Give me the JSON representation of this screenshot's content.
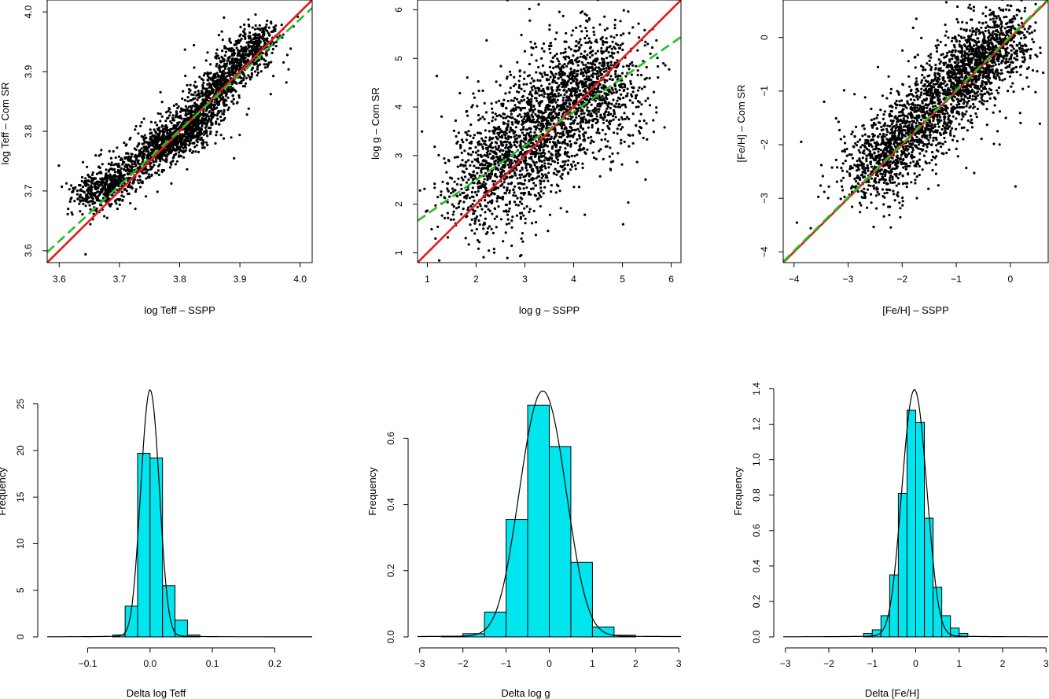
{
  "chart_data": [
    {
      "type": "scatter",
      "xlabel": "log Teff – SSPP",
      "ylabel": "log Teff – Com SR",
      "xlim": [
        3.58,
        4.02
      ],
      "ylim": [
        3.58,
        4.02
      ],
      "xticks": [
        "3.6",
        "3.7",
        "3.8",
        "3.9",
        "4.0"
      ],
      "yticks": [
        "3.6",
        "3.7",
        "3.8",
        "3.9",
        "4.0"
      ],
      "lines": [
        {
          "name": "identity",
          "color": "#e31a1c",
          "style": "solid",
          "slope": 1.0,
          "intercept": 0.0
        },
        {
          "name": "fit",
          "color": "#22c022",
          "style": "dashed",
          "slope": 0.93,
          "intercept": 0.268
        }
      ],
      "cloud": [
        [
          3.64,
          3.69
        ],
        [
          3.7,
          3.72
        ],
        [
          3.76,
          3.77
        ],
        [
          3.8,
          3.79
        ],
        [
          3.83,
          3.82
        ],
        [
          3.86,
          3.87
        ],
        [
          3.9,
          3.92
        ],
        [
          3.95,
          3.96
        ]
      ]
    },
    {
      "type": "scatter",
      "xlabel": "log g – SSPP",
      "ylabel": "log g – Com SR",
      "xlim": [
        0.8,
        6.2
      ],
      "ylim": [
        0.8,
        6.2
      ],
      "xticks": [
        "1",
        "2",
        "3",
        "4",
        "5",
        "6"
      ],
      "yticks": [
        "1",
        "2",
        "3",
        "4",
        "5",
        "6"
      ],
      "lines": [
        {
          "name": "identity",
          "color": "#e31a1c",
          "style": "solid",
          "slope": 1.0,
          "intercept": 0.0
        },
        {
          "name": "fit",
          "color": "#22c022",
          "style": "dashed",
          "slope": 0.7,
          "intercept": 1.1
        }
      ],
      "cloud": [
        [
          1.8,
          2.2
        ],
        [
          2.5,
          2.7
        ],
        [
          3.0,
          3.3
        ],
        [
          3.5,
          3.7
        ],
        [
          4.0,
          4.3
        ],
        [
          4.5,
          4.5
        ],
        [
          4.9,
          4.6
        ]
      ]
    },
    {
      "type": "scatter",
      "xlabel": "[Fe/H] – SSPP",
      "ylabel": "[Fe/H] – Com SR",
      "xlim": [
        -4.2,
        0.7
      ],
      "ylim": [
        -4.2,
        0.7
      ],
      "xticks": [
        "−4",
        "−3",
        "−2",
        "−1",
        "0"
      ],
      "yticks": [
        "−4",
        "−3",
        "−2",
        "−1",
        "0"
      ],
      "lines": [
        {
          "name": "identity",
          "color": "#e31a1c",
          "style": "solid",
          "slope": 1.0,
          "intercept": 0.0
        },
        {
          "name": "fit",
          "color": "#22c022",
          "style": "dashed",
          "slope": 1.0,
          "intercept": 0.02
        }
      ],
      "cloud": [
        [
          -2.7,
          -2.7
        ],
        [
          -2.2,
          -2.1
        ],
        [
          -1.7,
          -1.6
        ],
        [
          -1.2,
          -1.1
        ],
        [
          -0.8,
          -0.6
        ],
        [
          -0.4,
          -0.3
        ],
        [
          0.0,
          0.1
        ]
      ]
    },
    {
      "type": "bar",
      "xlabel": "Delta log Teff",
      "ylabel": "Frequency",
      "xlim": [
        -0.165,
        0.26
      ],
      "ylim": [
        0,
        27
      ],
      "xticks": [
        "−0.1",
        "0.0",
        "0.1",
        "0.2"
      ],
      "xtick_values": [
        -0.1,
        0.0,
        0.1,
        0.2
      ],
      "yticks": [
        "0",
        "5",
        "10",
        "15",
        "20",
        "25"
      ],
      "ytick_values": [
        0,
        5,
        10,
        15,
        20,
        25
      ],
      "bin_edges": [
        -0.06,
        -0.04,
        -0.02,
        0.0,
        0.02,
        0.04,
        0.06,
        0.08
      ],
      "values": [
        0.2,
        3.3,
        19.7,
        19.2,
        5.5,
        1.8,
        0.2
      ],
      "curve": {
        "mean": 0.0,
        "sd": 0.0151,
        "peak": 26.4
      },
      "bar_color": "#00e5ee"
    },
    {
      "type": "bar",
      "xlabel": "Delta log g",
      "ylabel": "Frequency",
      "xlim": [
        -3.05,
        3.05
      ],
      "ylim": [
        0,
        0.76
      ],
      "xticks": [
        "−3",
        "−2",
        "−1",
        "0",
        "1",
        "2",
        "3"
      ],
      "xtick_values": [
        -3,
        -2,
        -1,
        0,
        1,
        2,
        3
      ],
      "yticks": [
        "0.0",
        "0.2",
        "0.4",
        "0.6"
      ],
      "ytick_values": [
        0.0,
        0.2,
        0.4,
        0.6
      ],
      "bin_edges": [
        -2.5,
        -2.0,
        -1.5,
        -1.0,
        -0.5,
        0.0,
        0.5,
        1.0,
        1.5,
        2.0
      ],
      "values": [
        0.002,
        0.01,
        0.075,
        0.355,
        0.7,
        0.575,
        0.225,
        0.03,
        0.005
      ],
      "curve": {
        "mean": -0.15,
        "sd": 0.54,
        "peak": 0.74
      },
      "bar_color": "#00e5ee"
    },
    {
      "type": "bar",
      "xlabel": "Delta [Fe/H]",
      "ylabel": "Frequency",
      "xlim": [
        -3.05,
        3.05
      ],
      "ylim": [
        0,
        1.42
      ],
      "xticks": [
        "−3",
        "−2",
        "−1",
        "0",
        "1",
        "2",
        "3"
      ],
      "xtick_values": [
        -3,
        -2,
        -1,
        0,
        1,
        2,
        3
      ],
      "yticks": [
        "0.0",
        "0.2",
        "0.4",
        "0.6",
        "0.8",
        "1.0",
        "1.2",
        "1.4"
      ],
      "ytick_values": [
        0.0,
        0.2,
        0.4,
        0.6,
        0.8,
        1.0,
        1.2,
        1.4
      ],
      "bin_edges": [
        -1.2,
        -1.0,
        -0.8,
        -0.6,
        -0.4,
        -0.2,
        0.0,
        0.2,
        0.4,
        0.6,
        0.8,
        1.0,
        1.2
      ],
      "values": [
        0.02,
        0.04,
        0.12,
        0.35,
        0.81,
        1.28,
        1.21,
        0.67,
        0.28,
        0.12,
        0.05,
        0.02
      ],
      "curve": {
        "mean": -0.03,
        "sd": 0.29,
        "peak": 1.39
      },
      "bar_color": "#00e5ee"
    }
  ]
}
